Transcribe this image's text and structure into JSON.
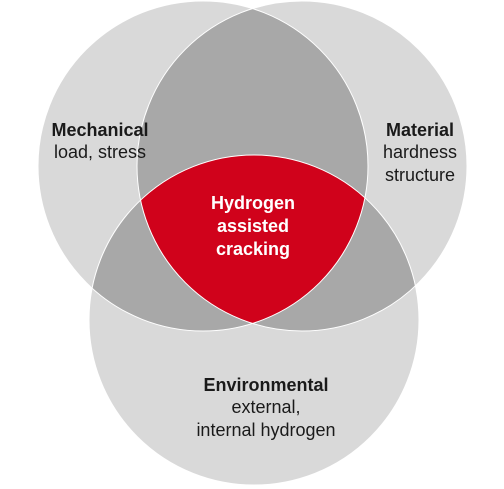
{
  "sets": [
    {
      "title": "Mechanical",
      "lines": [
        "load, stress"
      ]
    },
    {
      "title": "Material",
      "lines": [
        "hardness",
        "structure"
      ]
    },
    {
      "title": "Environmental",
      "lines": [
        "external,",
        "internal hydrogen"
      ]
    }
  ],
  "center": {
    "lines": [
      "Hydrogen",
      "assisted",
      "cracking"
    ]
  }
}
